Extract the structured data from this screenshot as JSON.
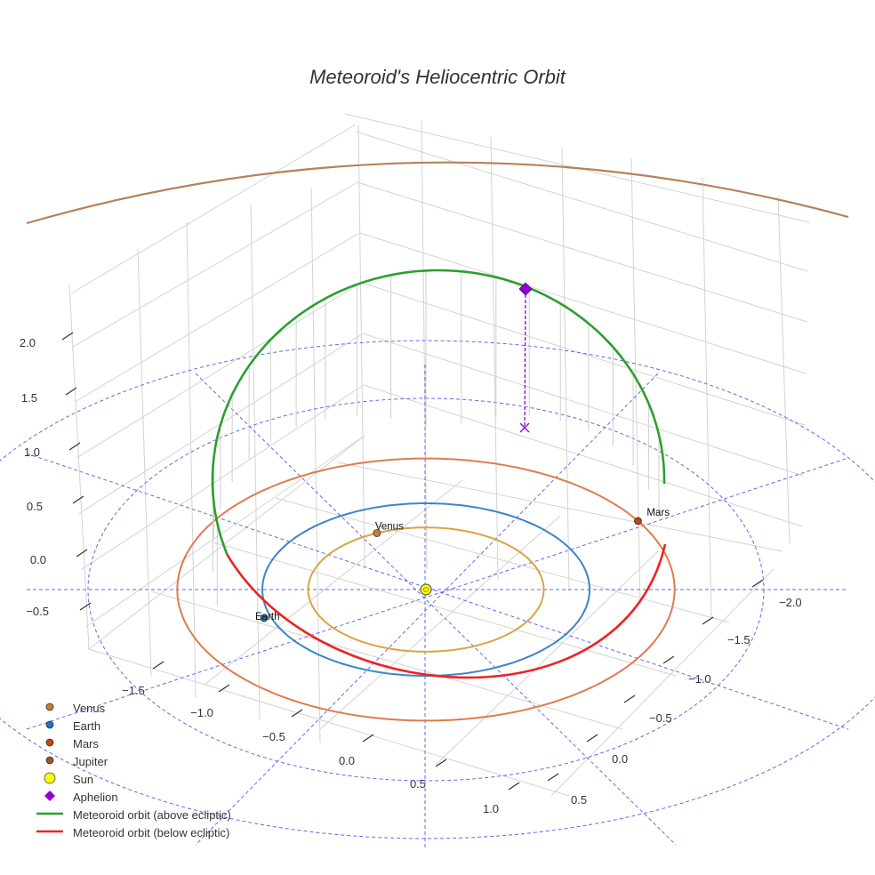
{
  "chart_data": {
    "type": "line",
    "projection": "3d",
    "title": "Meteoroid's Heliocentric Orbit",
    "axes": {
      "x": {
        "ticks": [
          -1.5,
          -1.0,
          -0.5,
          0.0,
          0.5,
          1.0
        ],
        "tick_labels": [
          "−1.5",
          "−1.0",
          "−0.5",
          "0.0",
          "0.5",
          "1.0"
        ]
      },
      "y": {
        "ticks": [
          -2.0,
          -1.5,
          -1.0,
          -0.5,
          0.0,
          0.5
        ],
        "tick_labels": [
          "−2.0",
          "−1.5",
          "−1.0",
          "−0.5",
          "0.0",
          "0.5"
        ]
      },
      "z": {
        "ticks": [
          -0.5,
          0.0,
          0.5,
          1.0,
          1.5,
          2.0
        ],
        "tick_labels": [
          "−0.5",
          "0.0",
          "0.5",
          "1.0",
          "1.5",
          "2.0"
        ]
      }
    },
    "bodies": [
      {
        "name": "Venus",
        "label": "Venus",
        "color": "#c87d2e",
        "orbit_color": "#d9a441",
        "orbit_radius_au": 0.72
      },
      {
        "name": "Earth",
        "label": "Earth",
        "color": "#1f77b4",
        "orbit_color": "#3d85c6",
        "orbit_radius_au": 1.0
      },
      {
        "name": "Mars",
        "label": "Mars",
        "color": "#c1440e",
        "orbit_color": "#e07b4f",
        "orbit_radius_au": 1.52
      },
      {
        "name": "Jupiter",
        "label": "",
        "color": "#a0522d",
        "orbit_color": "#b8805a",
        "orbit_radius_au": 5.2
      },
      {
        "name": "Sun",
        "label": "",
        "color": "#ffff00"
      }
    ],
    "series": [
      {
        "name": "Meteoroid orbit (above ecliptic)",
        "color": "#2ca02c"
      },
      {
        "name": "Meteoroid orbit (below ecliptic)",
        "color": "#ee2222"
      }
    ],
    "aphelion": {
      "name": "Aphelion",
      "color": "#9400d3",
      "z_au": 2.15
    },
    "legend": [
      {
        "label": "Venus",
        "marker": "circle",
        "color": "#c87d2e"
      },
      {
        "label": "Earth",
        "marker": "circle",
        "color": "#1f77b4"
      },
      {
        "label": "Mars",
        "marker": "circle",
        "color": "#c1440e"
      },
      {
        "label": "Jupiter",
        "marker": "circle",
        "color": "#a0522d"
      },
      {
        "label": "Sun",
        "marker": "big-circle",
        "color": "#ffff00"
      },
      {
        "label": "Aphelion",
        "marker": "diamond",
        "color": "#9400d3"
      },
      {
        "label": "Meteoroid orbit (above ecliptic)",
        "marker": "line",
        "color": "#2ca02c"
      },
      {
        "label": "Meteoroid orbit (below ecliptic)",
        "marker": "line",
        "color": "#ee2222"
      }
    ],
    "legend_position": "bottom-left"
  }
}
